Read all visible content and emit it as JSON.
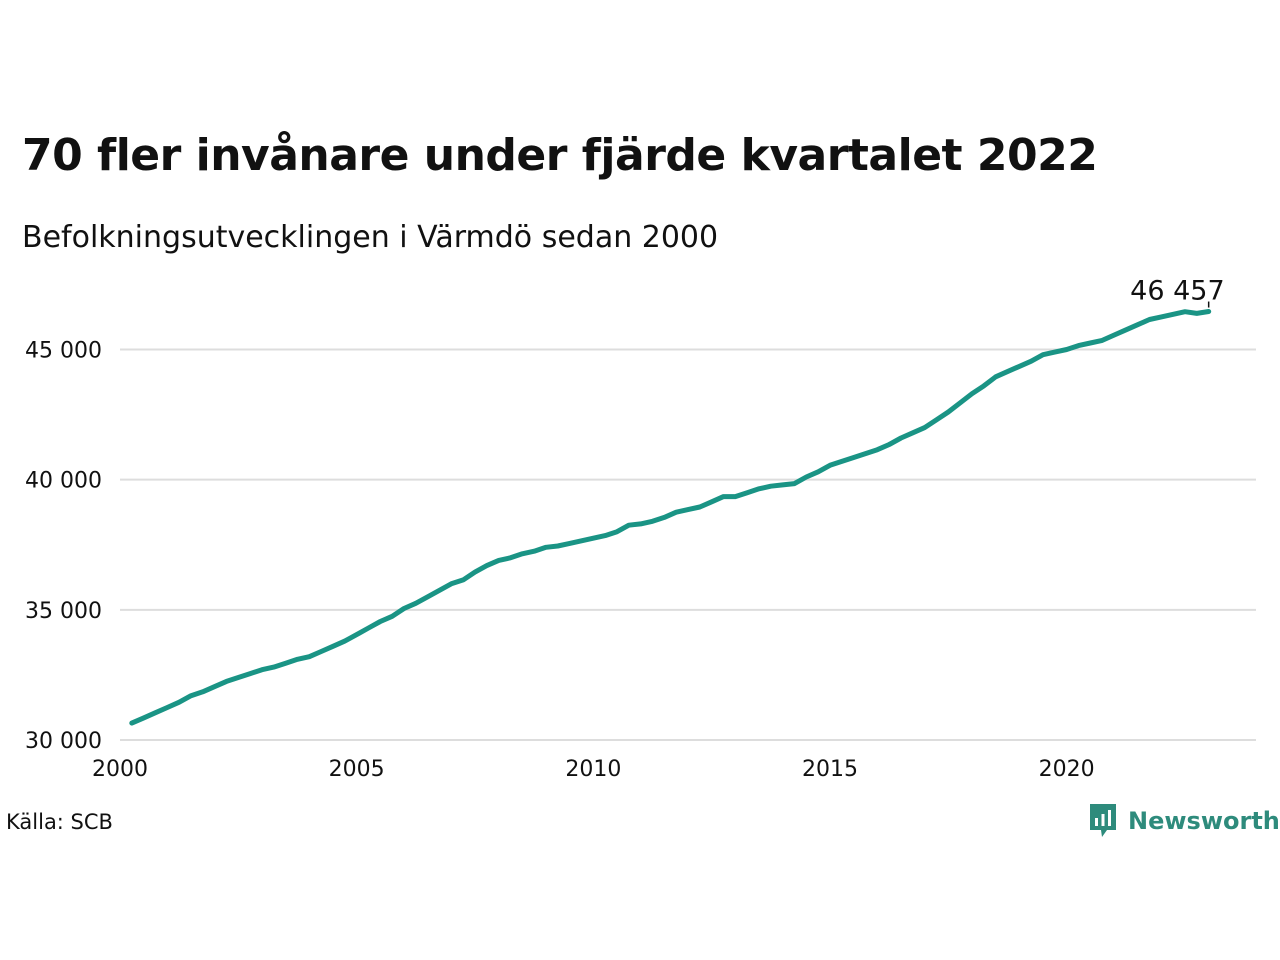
{
  "header": {
    "title": "70 fler invånare under fjärde kvartalet 2022",
    "subtitle": "Befolkningsutvecklingen i Värmdö sedan 2000"
  },
  "footer": {
    "source": "Källa: SCB",
    "brand": "Newsworthy",
    "brand_icon": "newsworthy-logo-icon"
  },
  "colors": {
    "line": "#1a9485",
    "grid": "#dddddd",
    "text": "#111111",
    "brand": "#2e8b7c"
  },
  "chart_data": {
    "type": "line",
    "title": "70 fler invånare under fjärde kvartalet 2022",
    "subtitle": "Befolkningsutvecklingen i Värmdö sedan 2000",
    "xlabel": "",
    "ylabel": "",
    "xlim": [
      2000,
      2024
    ],
    "ylim": [
      30000,
      46900
    ],
    "x_ticks": [
      2000,
      2005,
      2010,
      2015,
      2020
    ],
    "x_tick_labels": [
      "2000",
      "2005",
      "2010",
      "2015",
      "2020"
    ],
    "y_ticks": [
      30000,
      35000,
      40000,
      45000
    ],
    "y_tick_labels": [
      "30 000",
      "35 000",
      "40 000",
      "45 000"
    ],
    "grid": "horizontal",
    "end_label": "46 457",
    "series": [
      {
        "x": [
          2000.25,
          2000.5,
          2000.75,
          2001.0,
          2001.25,
          2001.5,
          2001.75,
          2002.0,
          2002.25,
          2002.5,
          2002.75,
          2003.0,
          2003.25,
          2003.5,
          2003.75,
          2004.0,
          2004.25,
          2004.5,
          2004.75,
          2005.0,
          2005.25,
          2005.5,
          2005.75,
          2006.0,
          2006.25,
          2006.5,
          2006.75,
          2007.0,
          2007.25,
          2007.5,
          2007.75,
          2008.0,
          2008.25,
          2008.5,
          2008.75,
          2009.0,
          2009.25,
          2009.5,
          2009.75,
          2010.0,
          2010.25,
          2010.5,
          2010.75,
          2011.0,
          2011.25,
          2011.5,
          2011.75,
          2012.0,
          2012.25,
          2012.5,
          2012.75,
          2013.0,
          2013.25,
          2013.5,
          2013.75,
          2014.0,
          2014.25,
          2014.5,
          2014.75,
          2015.0,
          2015.25,
          2015.5,
          2015.75,
          2016.0,
          2016.25,
          2016.5,
          2016.75,
          2017.0,
          2017.25,
          2017.5,
          2017.75,
          2018.0,
          2018.25,
          2018.5,
          2018.75,
          2019.0,
          2019.25,
          2019.5,
          2019.75,
          2020.0,
          2020.25,
          2020.5,
          2020.75,
          2021.0,
          2021.25,
          2021.5,
          2021.75,
          2022.0,
          2022.25,
          2022.5,
          2022.75,
          2023.0
        ],
        "values": [
          30650,
          30850,
          31050,
          31250,
          31450,
          31700,
          31850,
          32050,
          32250,
          32400,
          32550,
          32700,
          32800,
          32950,
          33100,
          33200,
          33400,
          33600,
          33800,
          34050,
          34300,
          34550,
          34750,
          35050,
          35250,
          35500,
          35750,
          36000,
          36150,
          36450,
          36700,
          36900,
          37000,
          37150,
          37250,
          37400,
          37450,
          37550,
          37650,
          37750,
          37850,
          38000,
          38250,
          38300,
          38400,
          38550,
          38750,
          38850,
          38950,
          39150,
          39350,
          39350,
          39500,
          39650,
          39750,
          39800,
          39850,
          40100,
          40300,
          40550,
          40700,
          40850,
          41000,
          41150,
          41350,
          41600,
          41800,
          42000,
          42300,
          42600,
          42950,
          43300,
          43600,
          43950,
          44150,
          44350,
          44550,
          44800,
          44900,
          45000,
          45150,
          45250,
          45350,
          45550,
          45750,
          45950,
          46150,
          46250,
          46350,
          46450,
          46387,
          46457
        ]
      }
    ]
  }
}
